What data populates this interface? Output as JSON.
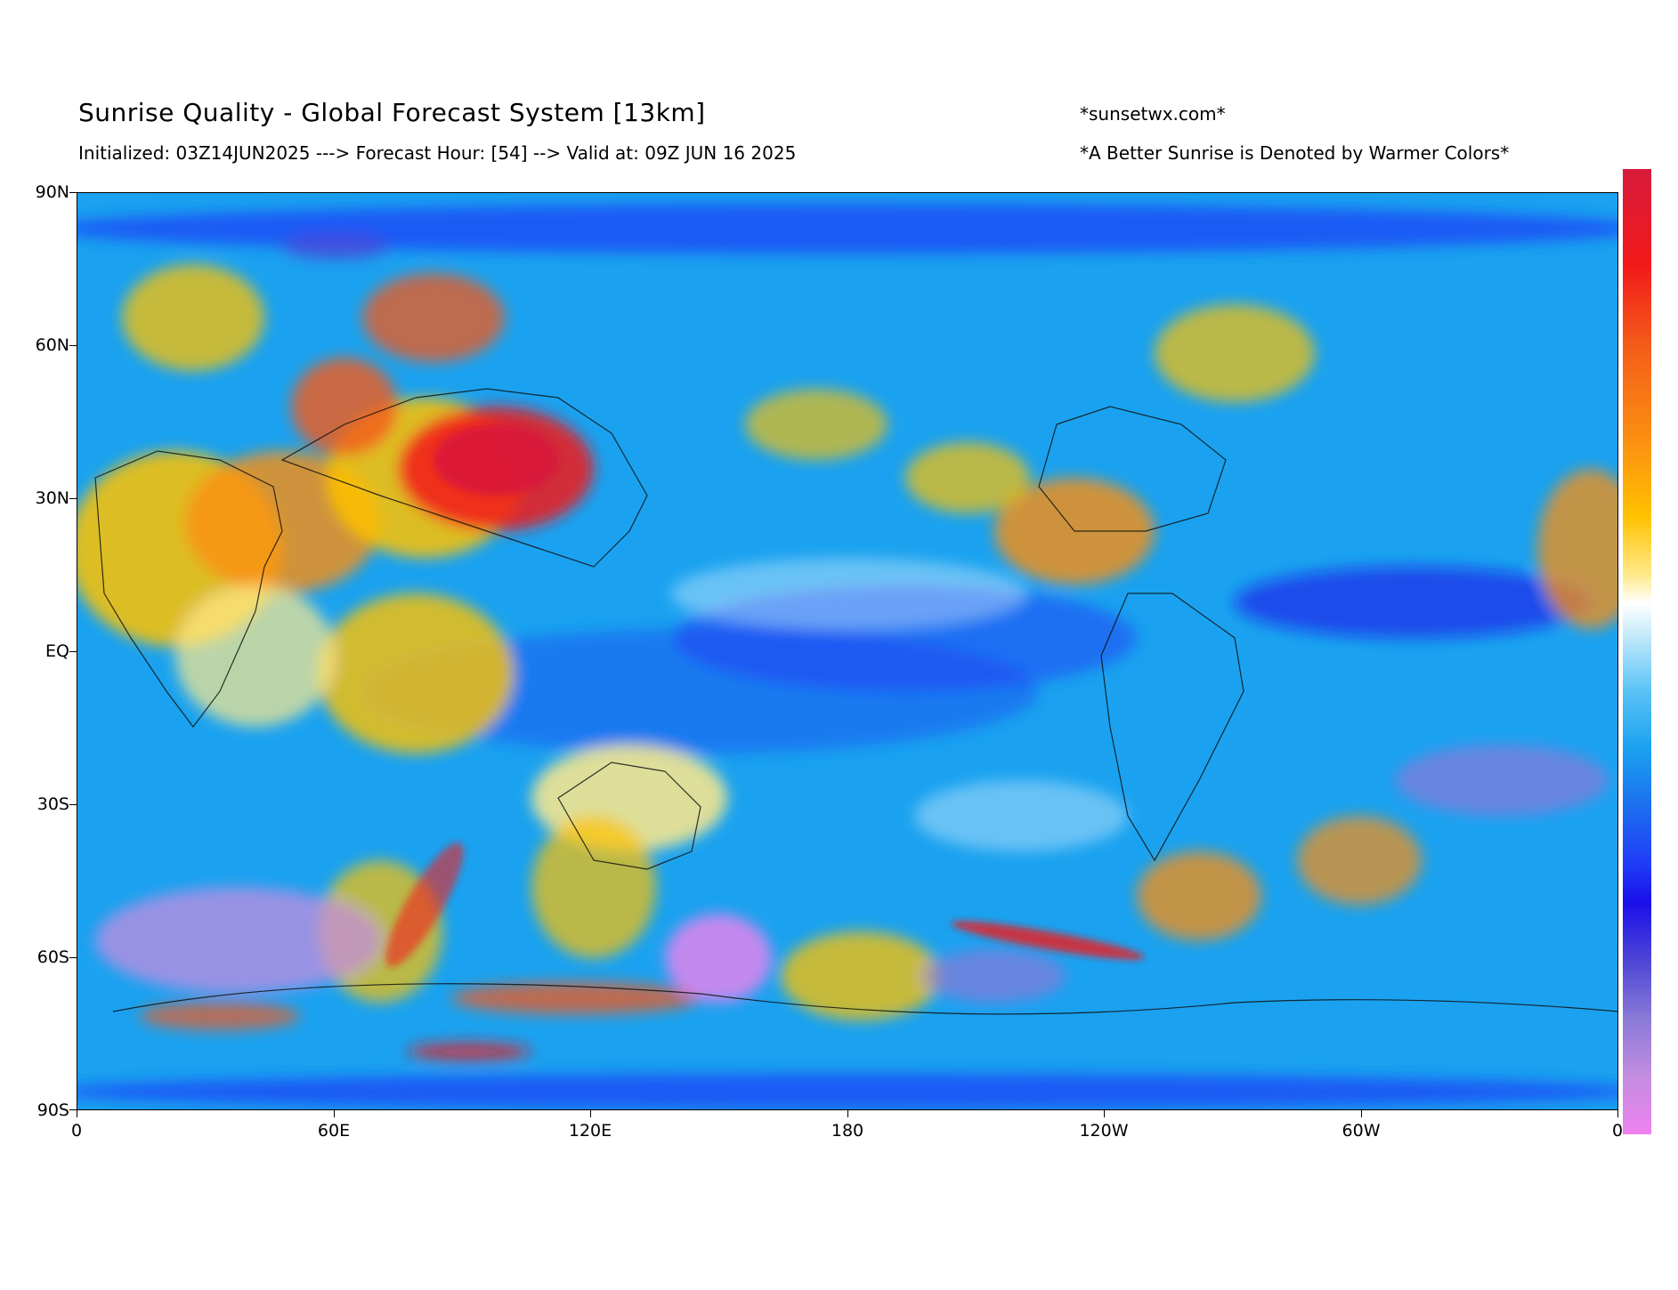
{
  "header": {
    "title": "Sunrise Quality - Global Forecast System [13km]",
    "subtitle": "Initialized: 03Z14JUN2025 ---> Forecast Hour: [54] --> Valid at: 09Z JUN 16 2025",
    "site": "*sunsetwx.com*",
    "note": "*A Better Sunrise is Denoted by Warmer Colors*"
  },
  "axes": {
    "y_ticks": [
      "90N",
      "60N",
      "30N",
      "EQ",
      "30S",
      "60S",
      "90S"
    ],
    "x_ticks": [
      "0",
      "60E",
      "120E",
      "180",
      "120W",
      "60W",
      "0"
    ]
  },
  "colorbar": {
    "colors": [
      "#d81b3c",
      "#f21a1a",
      "#fb8f12",
      "#ffc200",
      "#ffffff",
      "#1aa2f0",
      "#1a10ea",
      "#8a7ad8",
      "#ee82ee"
    ],
    "meaning": "A Better Sunrise is Denoted by Warmer Colors"
  },
  "map": {
    "projection": "equirectangular",
    "lon_range": [
      0,
      360
    ],
    "lat_range": [
      -90,
      90
    ],
    "background_color": "#1aa2f0"
  }
}
